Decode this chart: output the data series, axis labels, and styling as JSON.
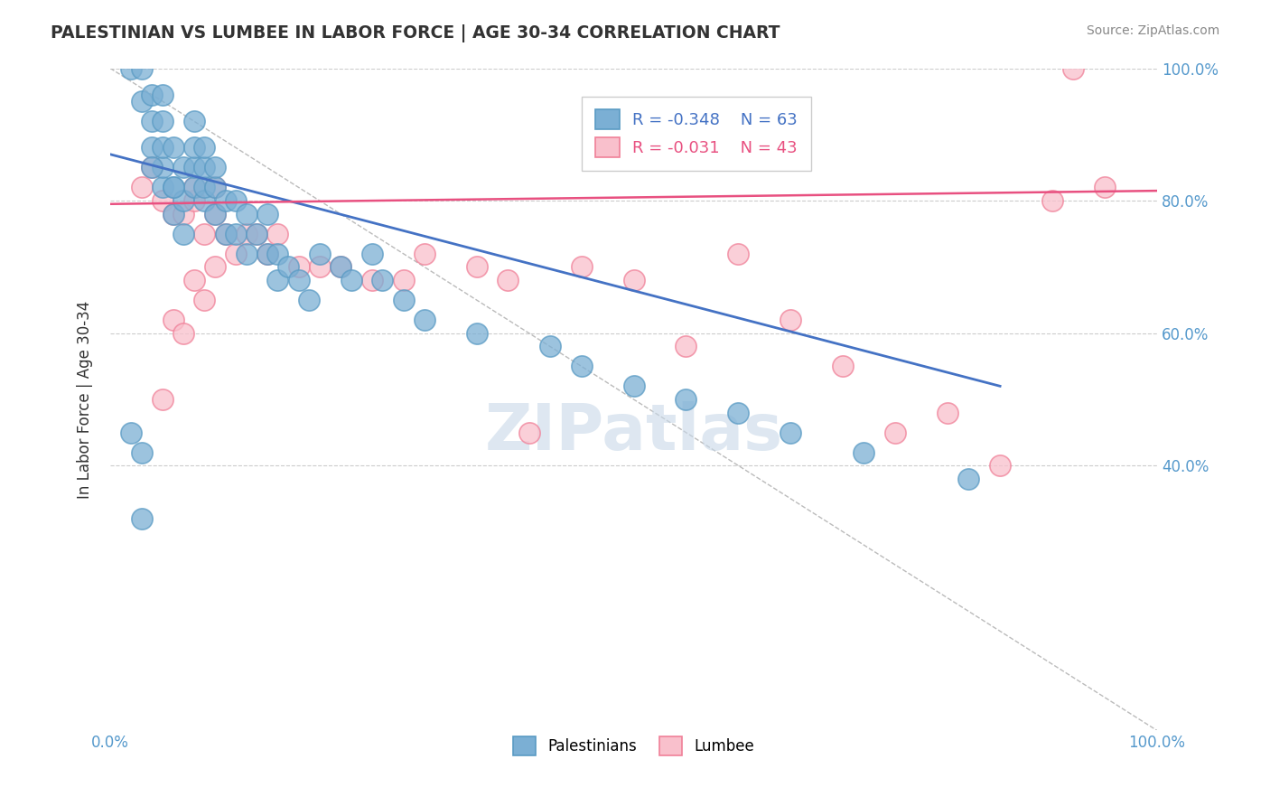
{
  "title": "PALESTINIAN VS LUMBEE IN LABOR FORCE | AGE 30-34 CORRELATION CHART",
  "source_text": "Source: ZipAtlas.com",
  "ylabel": "In Labor Force | Age 30-34",
  "xlim": [
    0.0,
    1.0
  ],
  "ylim": [
    0.0,
    1.0
  ],
  "xtick_labels": [
    "0.0%",
    "100.0%"
  ],
  "xtick_positions": [
    0.0,
    1.0
  ],
  "ytick_labels": [
    "40.0%",
    "60.0%",
    "80.0%",
    "100.0%"
  ],
  "ytick_positions": [
    0.4,
    0.6,
    0.8,
    1.0
  ],
  "legend_entries": [
    {
      "label": "Palestinians",
      "R": "-0.348",
      "N": "63",
      "color_fill": "#7bafd4",
      "color_edge": "#5a9bc4",
      "text_color": "#4472c4"
    },
    {
      "label": "Lumbee",
      "R": "-0.031",
      "N": "43",
      "color_fill": "#f9c0cc",
      "color_edge": "#f08098",
      "text_color": "#e85080"
    }
  ],
  "blue_color": "#7bafd4",
  "blue_edge": "#5a9bc4",
  "pink_color": "#f9c0cc",
  "pink_edge": "#f08098",
  "trend_blue": "#4472c4",
  "trend_pink": "#e85080",
  "watermark": "ZIPatlas",
  "watermark_color": "#c8d8e8",
  "grid_color": "#cccccc",
  "blue_scatter_x": [
    0.02,
    0.03,
    0.03,
    0.04,
    0.04,
    0.04,
    0.05,
    0.05,
    0.05,
    0.05,
    0.05,
    0.06,
    0.06,
    0.06,
    0.07,
    0.07,
    0.07,
    0.08,
    0.08,
    0.08,
    0.08,
    0.09,
    0.09,
    0.09,
    0.09,
    0.1,
    0.1,
    0.1,
    0.11,
    0.11,
    0.12,
    0.12,
    0.13,
    0.13,
    0.14,
    0.15,
    0.15,
    0.16,
    0.16,
    0.17,
    0.18,
    0.19,
    0.2,
    0.22,
    0.23,
    0.25,
    0.26,
    0.28,
    0.3,
    0.35,
    0.42,
    0.45,
    0.5,
    0.55,
    0.6,
    0.65,
    0.72,
    0.82,
    0.02,
    0.03,
    0.03,
    0.04,
    0.06
  ],
  "blue_scatter_y": [
    1.0,
    0.95,
    1.0,
    0.88,
    0.92,
    0.96,
    0.82,
    0.85,
    0.88,
    0.92,
    0.96,
    0.78,
    0.82,
    0.88,
    0.75,
    0.8,
    0.85,
    0.82,
    0.85,
    0.88,
    0.92,
    0.8,
    0.82,
    0.85,
    0.88,
    0.78,
    0.82,
    0.85,
    0.75,
    0.8,
    0.75,
    0.8,
    0.72,
    0.78,
    0.75,
    0.72,
    0.78,
    0.68,
    0.72,
    0.7,
    0.68,
    0.65,
    0.72,
    0.7,
    0.68,
    0.72,
    0.68,
    0.65,
    0.62,
    0.6,
    0.58,
    0.55,
    0.52,
    0.5,
    0.48,
    0.45,
    0.42,
    0.38,
    0.45,
    0.42,
    0.32,
    0.85,
    0.82
  ],
  "pink_scatter_x": [
    0.03,
    0.04,
    0.05,
    0.06,
    0.07,
    0.08,
    0.08,
    0.09,
    0.1,
    0.1,
    0.11,
    0.12,
    0.13,
    0.14,
    0.15,
    0.16,
    0.18,
    0.2,
    0.22,
    0.25,
    0.28,
    0.3,
    0.35,
    0.38,
    0.4,
    0.45,
    0.5,
    0.55,
    0.6,
    0.65,
    0.7,
    0.75,
    0.8,
    0.85,
    0.9,
    0.92,
    0.05,
    0.06,
    0.07,
    0.08,
    0.09,
    0.95,
    0.1
  ],
  "pink_scatter_y": [
    0.82,
    0.85,
    0.8,
    0.78,
    0.78,
    0.8,
    0.82,
    0.75,
    0.78,
    0.82,
    0.75,
    0.72,
    0.75,
    0.75,
    0.72,
    0.75,
    0.7,
    0.7,
    0.7,
    0.68,
    0.68,
    0.72,
    0.7,
    0.68,
    0.45,
    0.7,
    0.68,
    0.58,
    0.72,
    0.62,
    0.55,
    0.45,
    0.48,
    0.4,
    0.8,
    1.0,
    0.5,
    0.62,
    0.6,
    0.68,
    0.65,
    0.82,
    0.7
  ],
  "blue_trend_x": [
    0.0,
    0.85
  ],
  "blue_trend_y": [
    0.87,
    0.52
  ],
  "pink_trend_x": [
    0.0,
    1.0
  ],
  "pink_trend_y": [
    0.795,
    0.815
  ]
}
